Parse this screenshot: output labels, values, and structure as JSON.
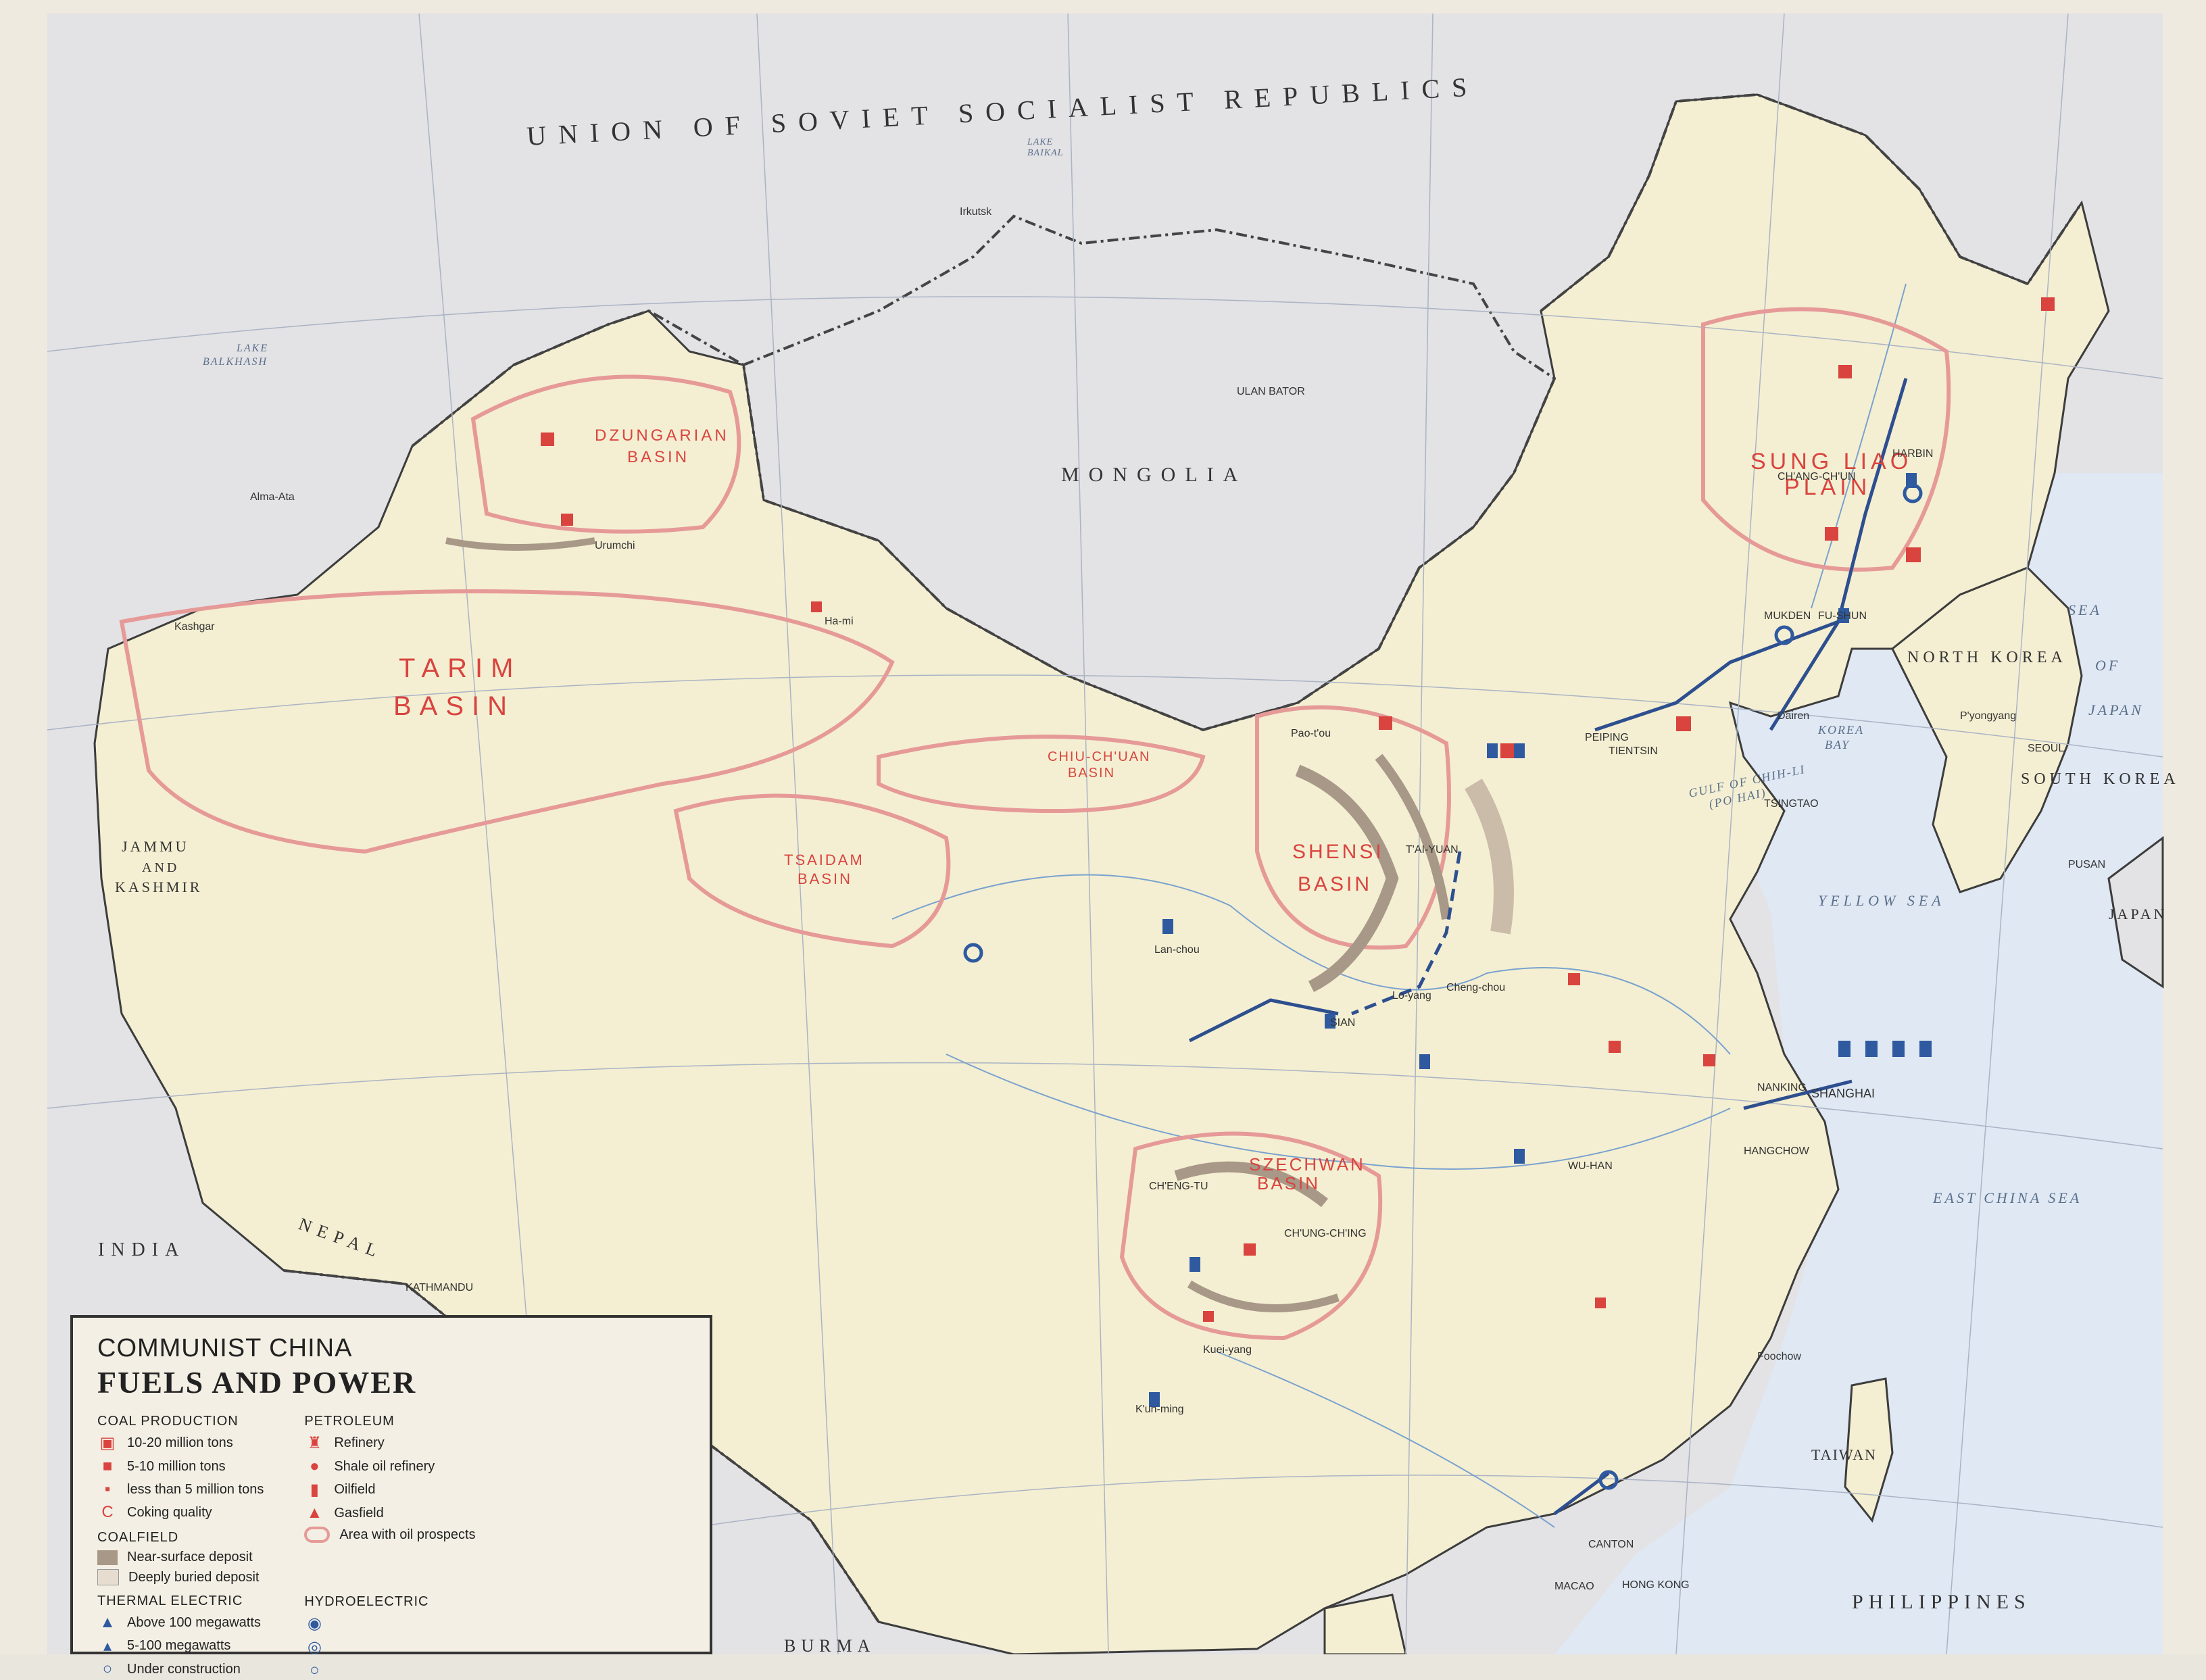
{
  "map": {
    "countries": {
      "ussr": "UNION OF SOVIET SOCIALIST REPUBLICS",
      "mongolia": "MONGOLIA",
      "india": "INDIA",
      "nepal": "NEPAL",
      "north_korea": "NORTH KOREA",
      "south_korea": "SOUTH KOREA",
      "japan": "JAPAN",
      "philippines": "PHILIPPINES",
      "burma": "BURMA",
      "jammu": "JAMMU",
      "and": "AND",
      "kashmir": "KASHMIR",
      "taiwan": "TAIWAN"
    },
    "basins": {
      "dzungarian_1": "DZUNGARIAN",
      "dzungarian_2": "BASIN",
      "tarim_1": "TARIM",
      "tarim_2": "BASIN",
      "tsaidam_1": "TSAIDAM",
      "tsaidam_2": "BASIN",
      "chiuchuan_1": "CHIU-CH'UAN",
      "chiuchuan_2": "BASIN",
      "shensi_1": "SHENSI",
      "shensi_2": "BASIN",
      "szechwan_1": "SZECHWAN",
      "szechwan_2": "BASIN",
      "sungliao_1": "SUNG LIAO",
      "sungliao_2": "PLAIN"
    },
    "waters": {
      "yellow_sea": "YELLOW SEA",
      "east_china_sea": "EAST CHINA SEA",
      "sea_of_japan_1": "SEA",
      "sea_of_japan_2": "OF",
      "sea_of_japan_3": "JAPAN",
      "korea_bay_1": "KOREA",
      "korea_bay_2": "BAY",
      "gulf_chihli_1": "GULF OF CHIH-LI",
      "gulf_chihli_2": "(PO HAI)",
      "lake_balkhash_1": "LAKE",
      "lake_balkhash_2": "BALKHASH",
      "lake_baikal_1": "LAKE",
      "lake_baikal_2": "BAIKAL"
    },
    "cities": [
      {
        "key": "peiping",
        "name": "PEIPING"
      },
      {
        "key": "tientsin",
        "name": "TIENTSIN"
      },
      {
        "key": "shanghai",
        "name": "SHANGHAI"
      },
      {
        "key": "nanking",
        "name": "NANKING"
      },
      {
        "key": "wuhan",
        "name": "WU-HAN"
      },
      {
        "key": "chungking",
        "name": "CH'UNG-CH'ING"
      },
      {
        "key": "chengtu",
        "name": "CH'ENG-TU"
      },
      {
        "key": "sian",
        "name": "SIAN"
      },
      {
        "key": "lanchou",
        "name": "Lan-chou"
      },
      {
        "key": "harbin",
        "name": "HARBIN"
      },
      {
        "key": "mukden",
        "name": "MUKDEN"
      },
      {
        "key": "canton",
        "name": "CANTON"
      },
      {
        "key": "taiyuan",
        "name": "T'AI-YUAN"
      },
      {
        "key": "hangchow",
        "name": "HANGCHOW"
      },
      {
        "key": "ulanbator",
        "name": "ULAN BATOR"
      },
      {
        "key": "kathmandu",
        "name": "KATHMANDU"
      },
      {
        "key": "alma_ata",
        "name": "Alma-Ata"
      },
      {
        "key": "irkutsk",
        "name": "Irkutsk"
      },
      {
        "key": "urumchi",
        "name": "Urumchi"
      },
      {
        "key": "hami",
        "name": "Ha-mi"
      },
      {
        "key": "kashgar",
        "name": "Kashgar"
      },
      {
        "key": "tsingtao",
        "name": "TSINGTAO"
      },
      {
        "key": "dairen",
        "name": "Dairen"
      },
      {
        "key": "kunming",
        "name": "K'un-ming"
      },
      {
        "key": "foochow",
        "name": "Foochow"
      },
      {
        "key": "hongkong",
        "name": "HONG KONG"
      },
      {
        "key": "macao",
        "name": "MACAO"
      },
      {
        "key": "seoul",
        "name": "SEOUL"
      },
      {
        "key": "pyongyang",
        "name": "P'yongyang"
      },
      {
        "key": "pusan",
        "name": "PUSAN"
      },
      {
        "key": "changchun",
        "name": "CH'ANG-CH'UN"
      },
      {
        "key": "fushun",
        "name": "FU-SHUN"
      },
      {
        "key": "paotou",
        "name": "Pao-t'ou"
      },
      {
        "key": "kweiyang",
        "name": "Kuei-yang"
      },
      {
        "key": "chengchou",
        "name": "Cheng-chou"
      },
      {
        "key": "loyang",
        "name": "Lo-yang"
      }
    ],
    "legend": {
      "title_1": "COMMUNIST CHINA",
      "title_2": "FUELS AND POWER",
      "coal_header": "COAL PRODUCTION",
      "coal_1": "10-20 million tons",
      "coal_2": "5-10 million tons",
      "coal_3": "less than 5 million tons",
      "coal_4": "Coking quality",
      "coalfield_header": "COALFIELD",
      "coalfield_1": "Near-surface deposit",
      "coalfield_2": "Deeply buried deposit",
      "thermal_header": "THERMAL ELECTRIC",
      "thermal_1": "Above 100 megawatts",
      "thermal_2": "5-100 megawatts",
      "thermal_3": "Under construction",
      "petroleum_header": "PETROLEUM",
      "petro_1": "Refinery",
      "petro_2": "Shale oil refinery",
      "petro_3": "Oilfield",
      "petro_4": "Gasfield",
      "petro_5": "Area with oil prospects",
      "hydro_header": "HYDROELECTRIC"
    },
    "colors": {
      "land_china": "#f4efd2",
      "land_other": "#e3e2e4",
      "sea": "#dfe8f3",
      "oil_outline": "#e69a98",
      "coal_red": "#d9443f",
      "power_blue": "#2f5aa0",
      "near_surface": "#a89888",
      "deep_buried": "#e6ddd0"
    }
  }
}
